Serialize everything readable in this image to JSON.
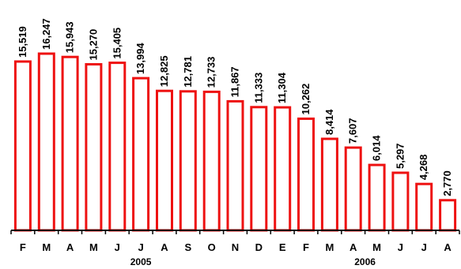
{
  "chart_data": {
    "type": "bar",
    "categories": [
      "F",
      "M",
      "A",
      "M",
      "J",
      "J",
      "A",
      "S",
      "O",
      "N",
      "D",
      "E",
      "F",
      "M",
      "A",
      "M",
      "J",
      "J",
      "A"
    ],
    "values": [
      15519,
      16247,
      15943,
      15270,
      15405,
      13994,
      12825,
      12781,
      12733,
      11867,
      11333,
      11304,
      10262,
      8414,
      7607,
      6014,
      5297,
      4268,
      2770
    ],
    "value_labels": [
      "15,519",
      "16,247",
      "15,943",
      "15,270",
      "15,405",
      "13,994",
      "12,825",
      "12,781",
      "12,733",
      "11,867",
      "11,333",
      "11,304",
      "10,262",
      "8,414",
      "7,607",
      "6,014",
      "5,297",
      "4,268",
      "2,770"
    ],
    "year_groups": [
      {
        "label": "2005",
        "start": 0,
        "end": 10
      },
      {
        "label": "2006",
        "start": 11,
        "end": 18
      }
    ],
    "ylim": [
      0,
      16800
    ],
    "colors": {
      "bar_stroke": "#ee1111",
      "bar_fill": "#ffffff"
    },
    "grid": false,
    "legend": "none"
  }
}
